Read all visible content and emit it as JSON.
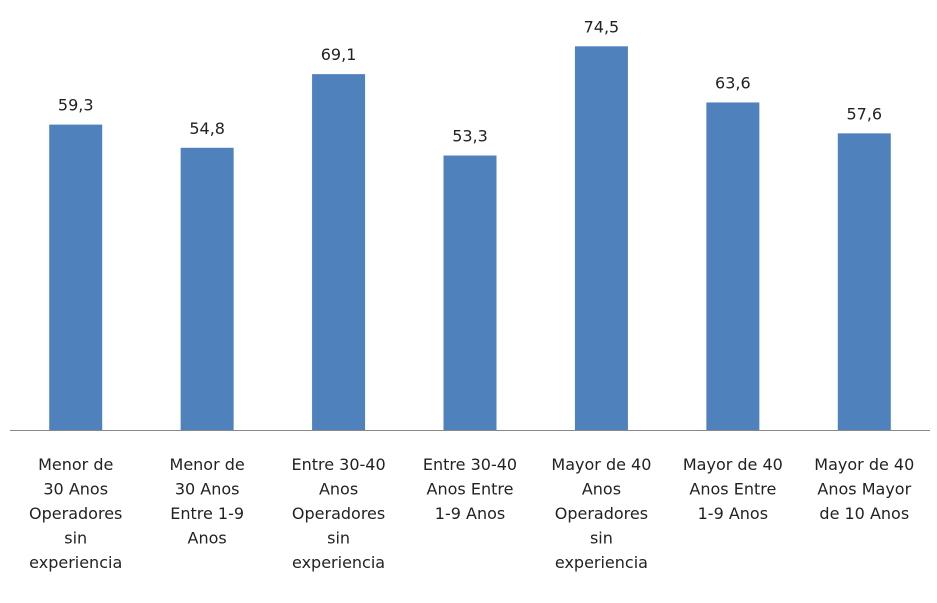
{
  "chart_data": {
    "type": "bar",
    "categories": [
      "Menor de\n30 Anos\nOperadores\nsin\nexperiencia",
      "Menor de\n30 Anos\nEntre 1-9\nAnos",
      "Entre 30-40\nAnos\nOperadores\nsin\nexperiencia",
      "Entre 30-40\nAnos Entre\n1-9 Anos",
      "Mayor de 40\nAnos\nOperadores\nsin\nexperiencia",
      "Mayor de 40\nAnos Entre\n1-9 Anos",
      "Mayor de 40\nAnos Mayor\nde 10 Anos"
    ],
    "values": [
      59.3,
      54.8,
      69.1,
      53.3,
      74.5,
      63.6,
      57.6
    ],
    "value_labels": [
      "59,3",
      "54,8",
      "69,1",
      "53,3",
      "74,5",
      "63,6",
      "57,6"
    ],
    "color": "#4f81bd",
    "ylim": [
      0,
      80
    ]
  }
}
